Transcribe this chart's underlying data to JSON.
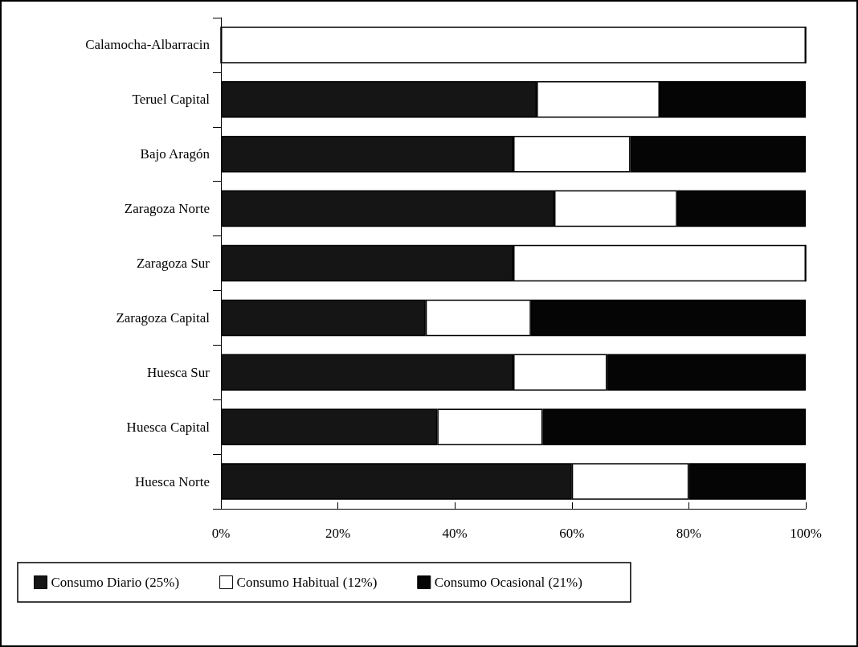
{
  "chart_data": {
    "type": "bar",
    "orientation": "horizontal",
    "stacked": true,
    "categories": [
      "Calamocha-Albarracin",
      "Teruel Capital",
      "Bajo Aragón",
      "Zaragoza Norte",
      "Zaragoza Sur",
      "Zaragoza Capital",
      "Huesca Sur",
      "Huesca Capital",
      "Huesca Norte"
    ],
    "series": [
      {
        "name": "Consumo Diario (25%)",
        "color": "#151515",
        "values": [
          0,
          54,
          50,
          57,
          50,
          35,
          50,
          37,
          60
        ]
      },
      {
        "name": "Consumo Habitual (12%)",
        "color": "#ffffff",
        "values": [
          100,
          21,
          20,
          21,
          50,
          18,
          16,
          18,
          20
        ]
      },
      {
        "name": "Consumo Ocasional (21%)",
        "color": "#050505",
        "values": [
          0,
          25,
          30,
          22,
          0,
          47,
          34,
          45,
          20
        ]
      }
    ],
    "xlim": [
      0,
      100
    ],
    "xticks": [
      {
        "value": 0,
        "label": "0%"
      },
      {
        "value": 20,
        "label": "20%"
      },
      {
        "value": 40,
        "label": "40%"
      },
      {
        "value": 60,
        "label": "60%"
      },
      {
        "value": 80,
        "label": "80%"
      },
      {
        "value": 100,
        "label": "100%"
      }
    ],
    "grid": false,
    "legend": "bottom"
  }
}
